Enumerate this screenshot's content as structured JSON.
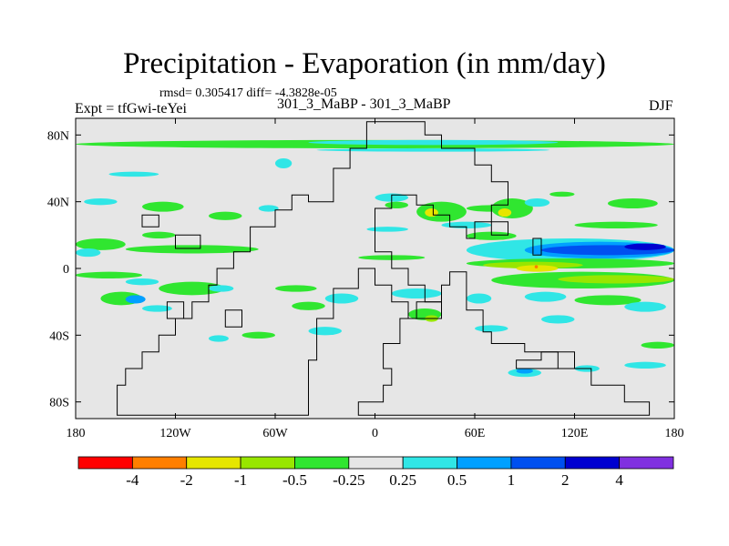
{
  "chart_data": {
    "type": "heatmap",
    "title": "Precipitation - Evaporation (in mm/day)",
    "stats_text": "rmsd= 0.305417  diff= -4.3828e-05",
    "experiment_label": "Expt = tfGwi-teYei",
    "comparison_label": "301_3_MaBP - 301_3_MaBP",
    "season": "DJF",
    "xlim": [
      -180,
      180
    ],
    "ylim": [
      -90,
      90
    ],
    "x_ticks": [
      {
        "value": -180,
        "label": "180"
      },
      {
        "value": -120,
        "label": "120W"
      },
      {
        "value": -60,
        "label": "60W"
      },
      {
        "value": 0,
        "label": "0"
      },
      {
        "value": 60,
        "label": "60E"
      },
      {
        "value": 120,
        "label": "120E"
      },
      {
        "value": 180,
        "label": "180"
      }
    ],
    "y_ticks": [
      {
        "value": 80,
        "label": "80N"
      },
      {
        "value": 40,
        "label": "40N"
      },
      {
        "value": 0,
        "label": "0"
      },
      {
        "value": -40,
        "label": "40S"
      },
      {
        "value": -80,
        "label": "80S"
      }
    ],
    "colorbar": {
      "colors": [
        "#ff0000",
        "#ff7f00",
        "#e6e600",
        "#98e600",
        "#30e630",
        "#e6e6e6",
        "#30e6e6",
        "#00a0ff",
        "#0050f0",
        "#0000d0",
        "#8030e0"
      ],
      "labels": [
        "-4",
        "-2",
        "-1",
        "-0.5",
        "-0.25",
        "0.25",
        "0.5",
        "1",
        "2",
        "4"
      ]
    },
    "colors": {
      "background": "#e6e6e6",
      "green": "#30e630",
      "lightgreen": "#98e600",
      "yellow": "#e6e600",
      "cyan": "#30e6e6",
      "lightblue": "#00a0ff",
      "blue": "#0050f0",
      "darkblue": "#0000d0",
      "orange": "#ff7f00"
    },
    "patches": [
      {
        "lon": -180,
        "lat": 77,
        "dlon": 360,
        "dlat": 5,
        "c": "green"
      },
      {
        "lon": -40,
        "lat": 77,
        "dlon": 150,
        "dlat": 3,
        "c": "cyan"
      },
      {
        "lon": -35,
        "lat": 72,
        "dlon": 140,
        "dlat": 2,
        "c": "cyan"
      },
      {
        "lon": -160,
        "lat": 58,
        "dlon": 30,
        "dlat": 3,
        "c": "cyan"
      },
      {
        "lon": -60,
        "lat": 66,
        "dlon": 10,
        "dlat": 6,
        "c": "cyan"
      },
      {
        "lon": -175,
        "lat": 42,
        "dlon": 20,
        "dlat": 4,
        "c": "cyan"
      },
      {
        "lon": -140,
        "lat": 40,
        "dlon": 25,
        "dlat": 6,
        "c": "green"
      },
      {
        "lon": -100,
        "lat": 34,
        "dlon": 20,
        "dlat": 5,
        "c": "green"
      },
      {
        "lon": -70,
        "lat": 38,
        "dlon": 12,
        "dlat": 4,
        "c": "cyan"
      },
      {
        "lon": -140,
        "lat": 22,
        "dlon": 20,
        "dlat": 4,
        "c": "green"
      },
      {
        "lon": -180,
        "lat": 18,
        "dlon": 30,
        "dlat": 7,
        "c": "green"
      },
      {
        "lon": -180,
        "lat": 12,
        "dlon": 15,
        "dlat": 5,
        "c": "cyan"
      },
      {
        "lon": -150,
        "lat": 14,
        "dlon": 80,
        "dlat": 5,
        "c": "green"
      },
      {
        "lon": -180,
        "lat": -2,
        "dlon": 40,
        "dlat": 4,
        "c": "green"
      },
      {
        "lon": -150,
        "lat": -6,
        "dlon": 20,
        "dlat": 4,
        "c": "cyan"
      },
      {
        "lon": -130,
        "lat": -8,
        "dlon": 40,
        "dlat": 8,
        "c": "green"
      },
      {
        "lon": -165,
        "lat": -14,
        "dlon": 25,
        "dlat": 8,
        "c": "green"
      },
      {
        "lon": -150,
        "lat": -16,
        "dlon": 12,
        "dlat": 5,
        "c": "lightblue"
      },
      {
        "lon": -100,
        "lat": -10,
        "dlon": 15,
        "dlat": 4,
        "c": "cyan"
      },
      {
        "lon": -140,
        "lat": -22,
        "dlon": 18,
        "dlat": 4,
        "c": "cyan"
      },
      {
        "lon": -60,
        "lat": -10,
        "dlon": 25,
        "dlat": 4,
        "c": "green"
      },
      {
        "lon": -50,
        "lat": -20,
        "dlon": 20,
        "dlat": 5,
        "c": "green"
      },
      {
        "lon": -30,
        "lat": -15,
        "dlon": 20,
        "dlat": 6,
        "c": "cyan"
      },
      {
        "lon": -80,
        "lat": -38,
        "dlon": 20,
        "dlat": 4,
        "c": "green"
      },
      {
        "lon": -40,
        "lat": -35,
        "dlon": 20,
        "dlat": 5,
        "c": "cyan"
      },
      {
        "lon": -100,
        "lat": -40,
        "dlon": 12,
        "dlat": 4,
        "c": "cyan"
      },
      {
        "lon": 0,
        "lat": 45,
        "dlon": 20,
        "dlat": 5,
        "c": "cyan"
      },
      {
        "lon": 6,
        "lat": 40,
        "dlon": 14,
        "dlat": 4,
        "c": "green"
      },
      {
        "lon": 25,
        "lat": 40,
        "dlon": 30,
        "dlat": 12,
        "c": "green"
      },
      {
        "lon": 30,
        "lat": 36,
        "dlon": 8,
        "dlat": 5,
        "c": "yellow"
      },
      {
        "lon": 55,
        "lat": 38,
        "dlon": 30,
        "dlat": 4,
        "c": "green"
      },
      {
        "lon": 70,
        "lat": 42,
        "dlon": 25,
        "dlat": 12,
        "c": "green"
      },
      {
        "lon": 74,
        "lat": 36,
        "dlon": 8,
        "dlat": 5,
        "c": "yellow"
      },
      {
        "lon": 90,
        "lat": 42,
        "dlon": 15,
        "dlat": 5,
        "c": "cyan"
      },
      {
        "lon": 105,
        "lat": 46,
        "dlon": 15,
        "dlat": 3,
        "c": "green"
      },
      {
        "lon": 140,
        "lat": 42,
        "dlon": 30,
        "dlat": 6,
        "c": "green"
      },
      {
        "lon": 120,
        "lat": 28,
        "dlon": 50,
        "dlat": 4,
        "c": "green"
      },
      {
        "lon": -5,
        "lat": 25,
        "dlon": 25,
        "dlat": 3,
        "c": "cyan"
      },
      {
        "lon": 40,
        "lat": 28,
        "dlon": 30,
        "dlat": 4,
        "c": "cyan"
      },
      {
        "lon": 55,
        "lat": 22,
        "dlon": 30,
        "dlat": 5,
        "c": "green"
      },
      {
        "lon": 55,
        "lat": 18,
        "dlon": 125,
        "dlat": 14,
        "c": "cyan"
      },
      {
        "lon": 90,
        "lat": 16,
        "dlon": 90,
        "dlat": 10,
        "c": "lightblue"
      },
      {
        "lon": 100,
        "lat": 14,
        "dlon": 80,
        "dlat": 6,
        "c": "blue"
      },
      {
        "lon": 150,
        "lat": 15,
        "dlon": 25,
        "dlat": 4,
        "c": "darkblue"
      },
      {
        "lon": -10,
        "lat": 8,
        "dlon": 40,
        "dlat": 3,
        "c": "green"
      },
      {
        "lon": 55,
        "lat": 6,
        "dlon": 125,
        "dlat": 6,
        "c": "green"
      },
      {
        "lon": 65,
        "lat": 4,
        "dlon": 60,
        "dlat": 4,
        "c": "lightgreen"
      },
      {
        "lon": 85,
        "lat": 2,
        "dlon": 25,
        "dlat": 4,
        "c": "yellow"
      },
      {
        "lon": 96,
        "lat": 2,
        "dlon": 2,
        "dlat": 2,
        "c": "orange"
      },
      {
        "lon": 70,
        "lat": -2,
        "dlon": 110,
        "dlat": 10,
        "c": "green"
      },
      {
        "lon": 110,
        "lat": -4,
        "dlon": 70,
        "dlat": 5,
        "c": "lightgreen"
      },
      {
        "lon": 120,
        "lat": -16,
        "dlon": 40,
        "dlat": 6,
        "c": "green"
      },
      {
        "lon": 10,
        "lat": -12,
        "dlon": 30,
        "dlat": 6,
        "c": "cyan"
      },
      {
        "lon": 55,
        "lat": -15,
        "dlon": 15,
        "dlat": 6,
        "c": "cyan"
      },
      {
        "lon": 90,
        "lat": -14,
        "dlon": 25,
        "dlat": 6,
        "c": "cyan"
      },
      {
        "lon": 150,
        "lat": -20,
        "dlon": 25,
        "dlat": 6,
        "c": "cyan"
      },
      {
        "lon": 20,
        "lat": -24,
        "dlon": 20,
        "dlat": 7,
        "c": "green"
      },
      {
        "lon": 30,
        "lat": -28,
        "dlon": 8,
        "dlat": 4,
        "c": "lightgreen"
      },
      {
        "lon": 100,
        "lat": -28,
        "dlon": 20,
        "dlat": 5,
        "c": "cyan"
      },
      {
        "lon": 60,
        "lat": -34,
        "dlon": 20,
        "dlat": 4,
        "c": "cyan"
      },
      {
        "lon": 160,
        "lat": -44,
        "dlon": 20,
        "dlat": 4,
        "c": "green"
      },
      {
        "lon": 80,
        "lat": -60,
        "dlon": 20,
        "dlat": 5,
        "c": "cyan"
      },
      {
        "lon": 85,
        "lat": -60,
        "dlon": 10,
        "dlat": 3,
        "c": "lightblue"
      },
      {
        "lon": 120,
        "lat": -58,
        "dlon": 15,
        "dlat": 4,
        "c": "cyan"
      },
      {
        "lon": 150,
        "lat": -56,
        "dlon": 25,
        "dlat": 4,
        "c": "cyan"
      }
    ],
    "landmasses": [
      [
        [
          -155,
          -88
        ],
        [
          -155,
          -70
        ],
        [
          -150,
          -70
        ],
        [
          -150,
          -60
        ],
        [
          -140,
          -60
        ],
        [
          -140,
          -50
        ],
        [
          -130,
          -50
        ],
        [
          -130,
          -40
        ],
        [
          -120,
          -40
        ],
        [
          -120,
          -30
        ],
        [
          -110,
          -30
        ],
        [
          -110,
          -20
        ],
        [
          -100,
          -20
        ],
        [
          -100,
          -10
        ],
        [
          -95,
          -10
        ],
        [
          -95,
          0
        ],
        [
          -85,
          0
        ],
        [
          -85,
          10
        ],
        [
          -75,
          10
        ],
        [
          -75,
          25
        ],
        [
          -60,
          25
        ],
        [
          -60,
          35
        ],
        [
          -50,
          35
        ],
        [
          -50,
          44
        ],
        [
          -40,
          44
        ],
        [
          -40,
          40
        ],
        [
          -25,
          40
        ],
        [
          -25,
          60
        ],
        [
          -15,
          60
        ],
        [
          -15,
          72
        ],
        [
          -5,
          72
        ],
        [
          -5,
          88
        ],
        [
          30,
          88
        ],
        [
          30,
          80
        ],
        [
          40,
          80
        ],
        [
          40,
          72
        ],
        [
          60,
          72
        ],
        [
          60,
          62
        ],
        [
          70,
          62
        ],
        [
          70,
          52
        ],
        [
          80,
          52
        ],
        [
          80,
          38
        ],
        [
          70,
          38
        ],
        [
          70,
          28
        ],
        [
          60,
          28
        ],
        [
          60,
          18
        ],
        [
          55,
          18
        ],
        [
          55,
          25
        ],
        [
          45,
          25
        ],
        [
          45,
          32
        ],
        [
          35,
          32
        ],
        [
          35,
          38
        ],
        [
          25,
          38
        ],
        [
          25,
          44
        ],
        [
          10,
          44
        ],
        [
          10,
          36
        ],
        [
          0,
          36
        ],
        [
          0,
          10
        ],
        [
          10,
          10
        ],
        [
          10,
          0
        ],
        [
          20,
          0
        ],
        [
          20,
          -10
        ],
        [
          30,
          -10
        ],
        [
          30,
          -20
        ],
        [
          40,
          -20
        ],
        [
          40,
          -30
        ],
        [
          20,
          -30
        ],
        [
          20,
          -20
        ],
        [
          10,
          -20
        ],
        [
          10,
          -10
        ],
        [
          0,
          -10
        ],
        [
          0,
          0
        ],
        [
          -10,
          0
        ],
        [
          -10,
          -12
        ],
        [
          -25,
          -12
        ],
        [
          -25,
          -30
        ],
        [
          -35,
          -30
        ],
        [
          -35,
          -55
        ],
        [
          -40,
          -55
        ],
        [
          -40,
          -88
        ],
        [
          -155,
          -88
        ]
      ],
      [
        [
          -10,
          -88
        ],
        [
          -10,
          -80
        ],
        [
          5,
          -80
        ],
        [
          5,
          -70
        ],
        [
          10,
          -70
        ],
        [
          10,
          -60
        ],
        [
          5,
          -60
        ],
        [
          5,
          -45
        ],
        [
          15,
          -45
        ],
        [
          15,
          -30
        ],
        [
          25,
          -30
        ],
        [
          25,
          -20
        ],
        [
          40,
          -20
        ],
        [
          40,
          -10
        ],
        [
          45,
          -10
        ],
        [
          45,
          -2
        ],
        [
          55,
          -2
        ],
        [
          55,
          -25
        ],
        [
          65,
          -25
        ],
        [
          65,
          -38
        ],
        [
          70,
          -38
        ],
        [
          70,
          -45
        ],
        [
          90,
          -45
        ],
        [
          90,
          -50
        ],
        [
          110,
          -50
        ],
        [
          110,
          -60
        ],
        [
          130,
          -60
        ],
        [
          130,
          -70
        ],
        [
          150,
          -70
        ],
        [
          150,
          -80
        ],
        [
          165,
          -80
        ],
        [
          165,
          -88
        ],
        [
          -10,
          -88
        ]
      ],
      [
        [
          85,
          -60
        ],
        [
          85,
          -55
        ],
        [
          100,
          -55
        ],
        [
          100,
          -50
        ],
        [
          120,
          -50
        ],
        [
          120,
          -60
        ],
        [
          85,
          -60
        ]
      ],
      [
        [
          70,
          20
        ],
        [
          70,
          28
        ],
        [
          80,
          28
        ],
        [
          80,
          20
        ],
        [
          70,
          20
        ]
      ],
      [
        [
          95,
          8
        ],
        [
          95,
          18
        ],
        [
          100,
          18
        ],
        [
          100,
          8
        ],
        [
          95,
          8
        ]
      ],
      [
        [
          -120,
          12
        ],
        [
          -120,
          20
        ],
        [
          -105,
          20
        ],
        [
          -105,
          12
        ],
        [
          -120,
          12
        ]
      ],
      [
        [
          -125,
          -30
        ],
        [
          -125,
          -20
        ],
        [
          -115,
          -20
        ],
        [
          -115,
          -30
        ],
        [
          -125,
          -30
        ]
      ],
      [
        [
          -140,
          25
        ],
        [
          -140,
          32
        ],
        [
          -130,
          32
        ],
        [
          -130,
          25
        ],
        [
          -140,
          25
        ]
      ],
      [
        [
          -90,
          -35
        ],
        [
          -90,
          -25
        ],
        [
          -80,
          -25
        ],
        [
          -80,
          -35
        ],
        [
          -90,
          -35
        ]
      ]
    ]
  }
}
